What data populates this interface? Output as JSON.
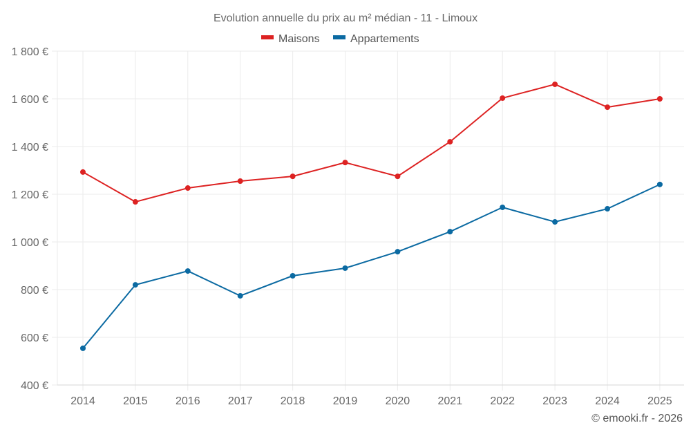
{
  "chart_data": {
    "type": "line",
    "title": "Evolution annuelle du prix au m² médian - 11 - Limoux",
    "xlabel": "",
    "ylabel": "",
    "x": [
      "2014",
      "2015",
      "2016",
      "2017",
      "2018",
      "2019",
      "2020",
      "2021",
      "2022",
      "2023",
      "2024",
      "2025"
    ],
    "ylim": [
      400,
      1800
    ],
    "yticks": [
      400,
      600,
      800,
      1000,
      1200,
      1400,
      1600,
      1800
    ],
    "ytick_labels": [
      "400 €",
      "600 €",
      "800 €",
      "1 000 €",
      "1 200 €",
      "1 400 €",
      "1 600 €",
      "1 800 €"
    ],
    "grid": true,
    "legend_position": "top-center",
    "series": [
      {
        "name": "Maisons",
        "color": "#dd2222",
        "values": [
          1293,
          1168,
          1226,
          1255,
          1275,
          1333,
          1275,
          1420,
          1603,
          1661,
          1565,
          1600
        ]
      },
      {
        "name": "Appartements",
        "color": "#0b6aa2",
        "values": [
          554,
          820,
          878,
          774,
          858,
          890,
          959,
          1043,
          1145,
          1084,
          1139,
          1241
        ]
      }
    ],
    "credit": "© emooki.fr - 2026"
  }
}
